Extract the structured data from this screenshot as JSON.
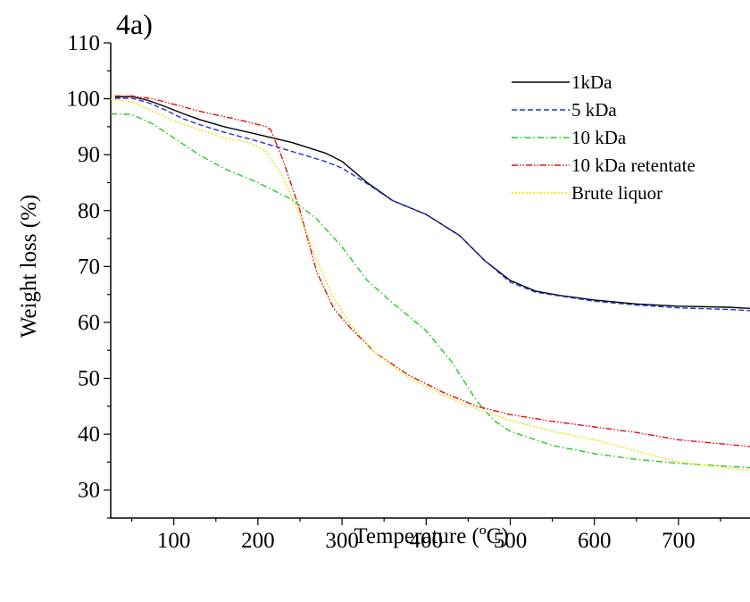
{
  "chart_data": {
    "type": "line",
    "panel_label": "4a)",
    "title": "",
    "xlabel": "Temperature (ºC)",
    "ylabel": "Weight loss  (%)",
    "xlim": [
      25,
      785
    ],
    "ylim": [
      25,
      110
    ],
    "x_ticks": [
      100,
      200,
      300,
      400,
      500,
      600,
      700
    ],
    "y_ticks": [
      30,
      40,
      50,
      60,
      70,
      80,
      90,
      100,
      110
    ],
    "grid": false,
    "legend_position": "top-right",
    "series": [
      {
        "name": "1kDa",
        "color": "#000000",
        "dash": "solid",
        "x": [
          30,
          50,
          70,
          90,
          110,
          130,
          160,
          200,
          240,
          280,
          300,
          330,
          360,
          400,
          440,
          470,
          500,
          530,
          560,
          600,
          650,
          700,
          760,
          785
        ],
        "y": [
          100.3,
          100.4,
          99.7,
          98.6,
          97.4,
          96.3,
          95.0,
          93.6,
          92.2,
          90.3,
          88.8,
          85.0,
          81.8,
          79.3,
          75.5,
          71.0,
          67.5,
          65.6,
          64.8,
          64.0,
          63.3,
          62.9,
          62.7,
          62.5
        ]
      },
      {
        "name": "5 kDa",
        "color": "#2233cc",
        "dash": "dashed",
        "x": [
          30,
          50,
          70,
          90,
          110,
          130,
          160,
          200,
          240,
          280,
          300,
          330,
          360,
          400,
          440,
          470,
          500,
          530,
          560,
          600,
          650,
          700,
          760,
          785
        ],
        "y": [
          100.1,
          100.1,
          99.3,
          98.0,
          96.5,
          95.4,
          94.0,
          92.4,
          90.6,
          88.8,
          87.6,
          84.8,
          81.8,
          79.3,
          75.5,
          71.0,
          67.2,
          65.4,
          64.7,
          63.8,
          63.1,
          62.6,
          62.3,
          62.1
        ]
      },
      {
        "name": "10 kDa",
        "color": "#22cc22",
        "dash": "dash-dot",
        "x": [
          25,
          50,
          75,
          100,
          130,
          160,
          200,
          240,
          270,
          300,
          330,
          360,
          400,
          430,
          460,
          480,
          500,
          550,
          600,
          650,
          700,
          785
        ],
        "y": [
          97.3,
          97.2,
          95.5,
          93.0,
          90.0,
          87.5,
          85.0,
          82.0,
          78.5,
          73.5,
          67.5,
          63.5,
          58.5,
          53.0,
          46.0,
          42.5,
          40.5,
          38.0,
          36.5,
          35.5,
          34.8,
          34.0
        ]
      },
      {
        "name": "10 kDa retentate",
        "color": "#dd1111",
        "dash": "dash-dot-dot",
        "x": [
          30,
          50,
          75,
          100,
          130,
          160,
          190,
          210,
          215,
          230,
          250,
          270,
          290,
          310,
          340,
          380,
          420,
          460,
          500,
          550,
          600,
          650,
          700,
          785
        ],
        "y": [
          100.5,
          100.5,
          100.0,
          99.0,
          97.8,
          96.8,
          95.8,
          95.0,
          94.5,
          89.0,
          80.0,
          69.0,
          62.5,
          59.0,
          54.5,
          50.5,
          47.5,
          45.0,
          43.5,
          42.3,
          41.3,
          40.3,
          39.0,
          37.8
        ]
      },
      {
        "name": "Brute liquor",
        "color": "#f0e000",
        "dash": "dotted",
        "x": [
          25,
          50,
          75,
          100,
          130,
          160,
          190,
          210,
          230,
          250,
          270,
          290,
          310,
          340,
          380,
          420,
          460,
          500,
          550,
          600,
          650,
          700,
          785
        ],
        "y": [
          99.9,
          99.5,
          97.8,
          96.0,
          94.5,
          93.0,
          92.2,
          90.5,
          86.0,
          79.0,
          71.0,
          64.5,
          59.5,
          54.5,
          50.0,
          47.0,
          44.5,
          42.5,
          40.5,
          39.0,
          37.0,
          35.0,
          33.5
        ]
      }
    ]
  }
}
